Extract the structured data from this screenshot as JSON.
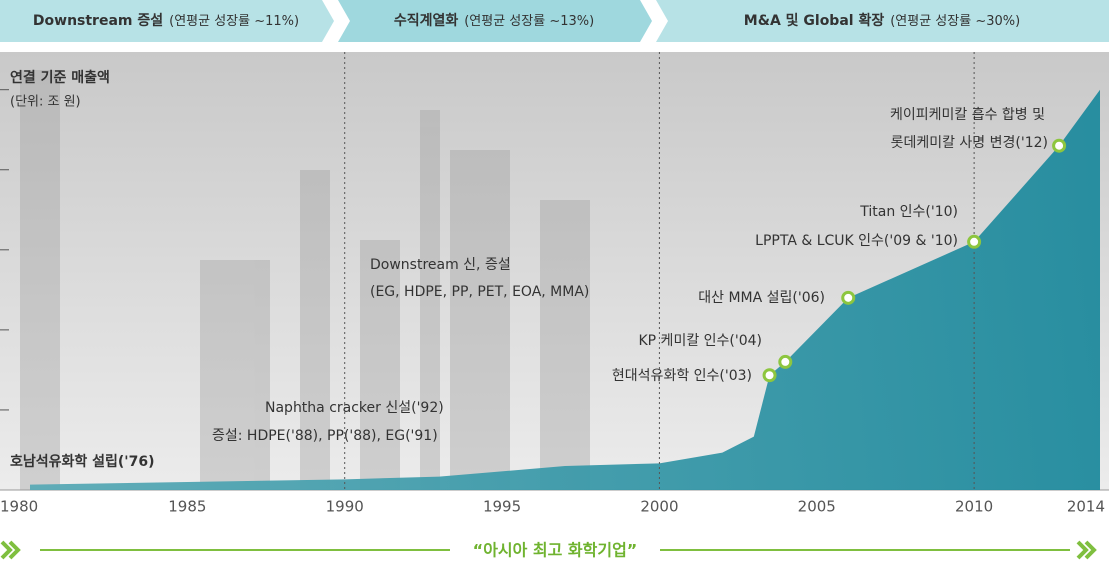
{
  "chart_data": {
    "type": "area",
    "phases": [
      {
        "title": "Downstream 증설",
        "note": "(연평균 성장률 ~11%)"
      },
      {
        "title": "수직계열화",
        "note": "(연평균 성장률 ~13%)"
      },
      {
        "title": "M&A 및 Global 확장",
        "note": "(연평균 성장률 ~30%)"
      }
    ],
    "y_label": "연결 기준 매출액",
    "y_unit": "(단위: 조 원)",
    "x": [
      1980,
      1985,
      1990,
      1993,
      1997,
      2000,
      2002,
      2003,
      2003.5,
      2004,
      2006,
      2010,
      2012.7,
      2014
    ],
    "series": [
      {
        "color": "#2f93a3",
        "values": [
          0.2,
          0.3,
          0.4,
          0.5,
          0.9,
          1.0,
          1.4,
          2.0,
          4.3,
          4.8,
          7.2,
          9.3,
          12.9,
          15.0
        ]
      }
    ],
    "xlim": [
      1980,
      2014
    ],
    "xticks": [
      1980,
      1985,
      1990,
      1995,
      2000,
      2005,
      2010,
      2014
    ],
    "ylim": [
      0,
      16
    ],
    "yticks": [
      3,
      6,
      9,
      12,
      15
    ],
    "dividers": [
      1990,
      2000,
      2010
    ],
    "markers": [
      {
        "x": 2003.5,
        "y": 4.3,
        "label": [
          "현대석유화학 인수('03)"
        ]
      },
      {
        "x": 2004,
        "y": 4.8,
        "label": [
          "KP 케미칼 인수('04)"
        ]
      },
      {
        "x": 2006,
        "y": 7.2,
        "label": [
          "대산 MMA 설립('06)"
        ]
      },
      {
        "x": 2010,
        "y": 9.3,
        "label": [
          "Titan 인수('10)",
          "LPPTA & LCUK 인수('09 & '10)"
        ]
      },
      {
        "x": 2012.7,
        "y": 12.9,
        "label": [
          "케이피케미칼 흡수 합병 및",
          "롯데케미칼 사명 변경('12)"
        ]
      }
    ],
    "notes": [
      [
        "Downstream 신, 증설",
        "(EG, HDPE, PP, PET, EOA, MMA)"
      ],
      [
        "Naphtha cracker 신설('92)",
        "증설: HDPE('88), PP('88), EG('91)"
      ],
      [
        "호남석유화학 설립('76)"
      ]
    ],
    "slogan": "“아시아 최고 화학기업”"
  }
}
